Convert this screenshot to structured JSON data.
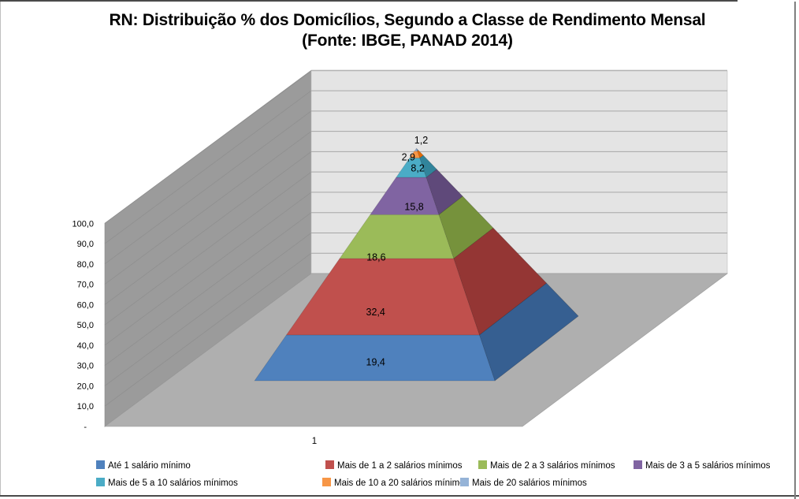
{
  "page": {
    "background": "#FFFFFF",
    "border_colors": {
      "top": "#4A4A4A",
      "bottom": "#4A4A4A",
      "left": "#BFBFBF",
      "right": "#7F7F7F"
    }
  },
  "chart_data": {
    "type": "pyramid",
    "projection": "3d-stacked-pyramid",
    "title": "RN: Distribuição % dos Domicílios, Segundo a Classe de Rendimento Mensal",
    "subtitle": "(Fonte: IBGE, PANAD 2014)",
    "categories": [
      "1"
    ],
    "series": [
      {
        "name": "Até 1 salário mínimo",
        "value": 19.4,
        "label": "19,4",
        "color": "#4F81BD",
        "side_color": "#365F91"
      },
      {
        "name": "Mais de 1 a 2 salários mínimos",
        "value": 32.4,
        "label": "32,4",
        "color": "#C0504D",
        "side_color": "#943634"
      },
      {
        "name": "Mais de 2 a 3 salários mínimos",
        "value": 18.6,
        "label": "18,6",
        "color": "#9BBB59",
        "side_color": "#76923C"
      },
      {
        "name": "Mais de 3 a 5 salários mínimos",
        "value": 15.8,
        "label": "15,8",
        "color": "#8064A2",
        "side_color": "#5F497A"
      },
      {
        "name": "Mais de 5 a 10 salários mínimos",
        "value": 8.2,
        "label": "8,2",
        "color": "#4BACC6",
        "side_color": "#31849B"
      },
      {
        "name": "Mais de 10 a 20 salários mínimos",
        "value": 2.9,
        "label": "2,9",
        "color": "#F79646",
        "side_color": "#E36C0A"
      },
      {
        "name": "Mais de 20 salários mínimos",
        "value": 1.2,
        "label": "1,2",
        "color": "#95B3D7",
        "side_color": "#6E94C0"
      }
    ],
    "y_axis": {
      "min": 0,
      "max": 100,
      "step": 10,
      "tick_labels": [
        "100,0",
        "90,0",
        "80,0",
        "70,0",
        "60,0",
        "50,0",
        "40,0",
        "30,0",
        "20,0",
        "10,0",
        "-"
      ]
    },
    "x_axis": {
      "labels": [
        "1"
      ]
    },
    "legend": {
      "position": "bottom",
      "rows": 2
    },
    "walls": {
      "back": "#E4E4E4",
      "side": "#9B9B9B",
      "floor": "#AFAFAF",
      "gridline": "#A6A6A6",
      "side_gridline": "#8F8F8F"
    }
  }
}
